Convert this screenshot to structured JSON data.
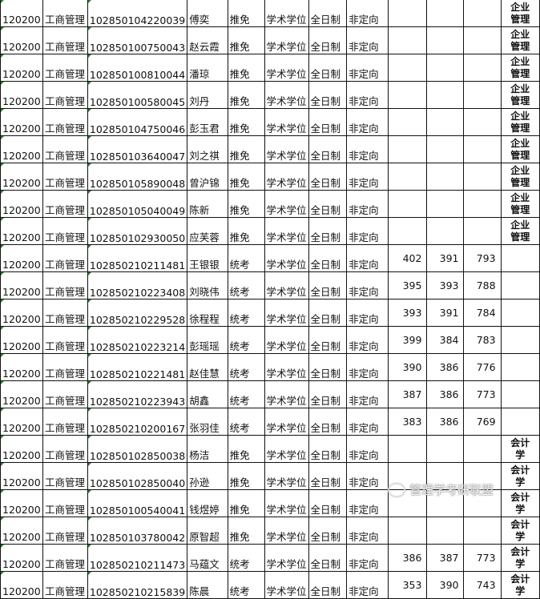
{
  "table": {
    "rows": [
      [
        "120200",
        "工商管理",
        "102850104220039",
        "傅奕",
        "推免",
        "学术学位",
        "全日制",
        "非定向",
        "",
        "",
        "",
        "企业管理"
      ],
      [
        "120200",
        "工商管理",
        "102850100750043",
        "赵云霞",
        "推免",
        "学术学位",
        "全日制",
        "非定向",
        "",
        "",
        "",
        "企业管理"
      ],
      [
        "120200",
        "工商管理",
        "102850100810044",
        "潘琼",
        "推免",
        "学术学位",
        "全日制",
        "非定向",
        "",
        "",
        "",
        "企业管理"
      ],
      [
        "120200",
        "工商管理",
        "102850100580045",
        "刘丹",
        "推免",
        "学术学位",
        "全日制",
        "非定向",
        "",
        "",
        "",
        "企业管理"
      ],
      [
        "120200",
        "工商管理",
        "102850104750046",
        "彭玉君",
        "推免",
        "学术学位",
        "全日制",
        "非定向",
        "",
        "",
        "",
        "企业管理"
      ],
      [
        "120200",
        "工商管理",
        "102850103640047",
        "刘之祺",
        "推免",
        "学术学位",
        "全日制",
        "非定向",
        "",
        "",
        "",
        "企业管理"
      ],
      [
        "120200",
        "工商管理",
        "102850105890048",
        "曾沪锦",
        "推免",
        "学术学位",
        "全日制",
        "非定向",
        "",
        "",
        "",
        "企业管理"
      ],
      [
        "120200",
        "工商管理",
        "102850105040049",
        "陈新",
        "推免",
        "学术学位",
        "全日制",
        "非定向",
        "",
        "",
        "",
        "企业管理"
      ],
      [
        "120200",
        "工商管理",
        "102850102930050",
        "应芙蓉",
        "推免",
        "学术学位",
        "全日制",
        "非定向",
        "",
        "",
        "",
        "企业管理"
      ],
      [
        "120200",
        "工商管理",
        "102850210211481",
        "王银银",
        "统考",
        "学术学位",
        "全日制",
        "非定向",
        "402",
        "391",
        "793",
        ""
      ],
      [
        "120200",
        "工商管理",
        "102850210223408",
        "刘晓伟",
        "统考",
        "学术学位",
        "全日制",
        "非定向",
        "395",
        "393",
        "788",
        ""
      ],
      [
        "120200",
        "工商管理",
        "102850210229528",
        "徐程程",
        "统考",
        "学术学位",
        "全日制",
        "非定向",
        "393",
        "391",
        "784",
        ""
      ],
      [
        "120200",
        "工商管理",
        "102850210223214",
        "彭瑶瑶",
        "统考",
        "学术学位",
        "全日制",
        "非定向",
        "399",
        "384",
        "783",
        ""
      ],
      [
        "120200",
        "工商管理",
        "102850210221481",
        "赵佳慧",
        "统考",
        "学术学位",
        "全日制",
        "非定向",
        "390",
        "386",
        "776",
        ""
      ],
      [
        "120200",
        "工商管理",
        "102850210223943",
        "胡鑫",
        "统考",
        "学术学位",
        "全日制",
        "非定向",
        "387",
        "386",
        "773",
        ""
      ],
      [
        "120200",
        "工商管理",
        "102850210200167",
        "张羽佳",
        "统考",
        "学术学位",
        "全日制",
        "非定向",
        "383",
        "386",
        "769",
        ""
      ],
      [
        "120200",
        "工商管理",
        "102850102850038",
        "杨洁",
        "推免",
        "学术学位",
        "全日制",
        "非定向",
        "",
        "",
        "",
        "会计学"
      ],
      [
        "120200",
        "工商管理",
        "102850102850040",
        "孙逊",
        "推免",
        "学术学位",
        "全日制",
        "非定向",
        "",
        "",
        "",
        "会计学"
      ],
      [
        "120200",
        "工商管理",
        "102850100540041",
        "钱煜婷",
        "推免",
        "学术学位",
        "全日制",
        "非定向",
        "",
        "",
        "",
        "会计学"
      ],
      [
        "120200",
        "工商管理",
        "102850103780042",
        "原智超",
        "推免",
        "学术学位",
        "全日制",
        "非定向",
        "",
        "",
        "",
        "会计学"
      ],
      [
        "120200",
        "工商管理",
        "102850210211473",
        "马蕴文",
        "统考",
        "学术学位",
        "全日制",
        "非定向",
        "386",
        "387",
        "773",
        "会计学"
      ],
      [
        "120200",
        "工商管理",
        "102850210215839",
        "陈晨",
        "统考",
        "学术学位",
        "全日制",
        "非定向",
        "353",
        "390",
        "743",
        "会计学"
      ]
    ]
  },
  "watermark": {
    "text": "管理学考研联盟",
    "icon": "wechat-icon"
  }
}
